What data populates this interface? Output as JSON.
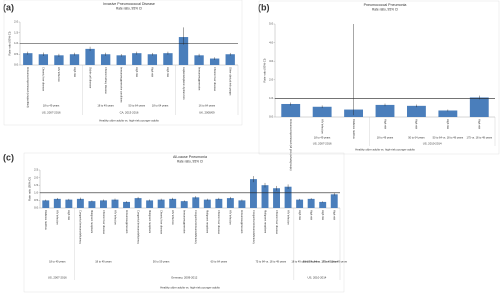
{
  "chart_data": [
    {
      "type": "bar",
      "panel": "(a)",
      "title": "Invasive Pneumococcal Disease",
      "subtitle": "Rate ratio, 95% CI",
      "y_label": "Rate ratio (95% CI)",
      "x_label": "Healthy older adults vs. high-risk younger adults",
      "color": "#4a7ebb",
      "ref_line": 1,
      "ylim": [
        0,
        2
      ],
      "yticks": [
        {
          "value": 0,
          "label": "0.0"
        },
        {
          "value": 0.5,
          "label": "0.5"
        },
        {
          "value": 1,
          "label": "1.0"
        },
        {
          "value": 1.5,
          "label": "1.5"
        },
        {
          "value": 2,
          "label": "2.0"
        }
      ],
      "groups": [
        {
          "label": "US, 2007-2016",
          "subgroups": [
            {
              "label": "18 to 49 years",
              "categories": [
                "Immunocompromised (unspecified)",
                "Chronic liver disease",
                "HIV infection",
                "High risk"
              ],
              "values": [
                0.55,
                0.5,
                0.45,
                0.5
              ],
              "ci_low": [
                0.48,
                0.42,
                0.38,
                0.44
              ],
              "ci_high": [
                0.62,
                0.58,
                0.52,
                0.57
              ]
            }
          ]
        },
        {
          "label": "CA, 2013-2016",
          "subgroups": [
            {
              "label": "18 to 49 years",
              "categories": [
                "Sickle cell disease",
                "Chronic kidney disease",
                "Immunosuppressive conditions"
              ],
              "values": [
                0.75,
                0.5,
                0.45
              ],
              "ci_low": [
                0.65,
                0.43,
                0.39
              ],
              "ci_high": [
                0.85,
                0.57,
                0.51
              ]
            },
            {
              "label": "50 to 64 years",
              "categories": [
                "High risk"
              ],
              "values": [
                0.55
              ],
              "ci_low": [
                0.48
              ],
              "ci_high": [
                0.62
              ]
            },
            {
              "label": "18 to 64 years",
              "categories": [
                "High risk",
                "High risk"
              ],
              "values": [
                0.5,
                0.55
              ],
              "ci_low": [
                0.44,
                0.48
              ],
              "ci_high": [
                0.56,
                0.62
              ]
            }
          ]
        },
        {
          "label": "UK, 2008/09",
          "subgroups": [
            {
              "label": "16 to 64 years",
              "categories": [
                "Asplenia/splenic dysfunction",
                "Immunosuppression",
                "Chronic liver disease",
                "Other clinical risk groups"
              ],
              "values": [
                1.3,
                0.45,
                0.3,
                0.5
              ],
              "ci_low": [
                0.95,
                0.38,
                0.24,
                0.44
              ],
              "ci_high": [
                1.75,
                0.52,
                0.36,
                0.56
              ]
            }
          ]
        }
      ]
    },
    {
      "type": "bar",
      "panel": "(b)",
      "title": "Pneumococcal Pneumonia",
      "subtitle": "Rate ratio, 95% CI",
      "y_label": "Rate ratio (95% CI)",
      "x_label": "Healthy older adults vs. high-risk younger adults",
      "color": "#4a7ebb",
      "ref_line": 1,
      "ylim": [
        0,
        5
      ],
      "yticks": [
        {
          "value": 0,
          "label": "0.0"
        },
        {
          "value": 1,
          "label": "1.0"
        },
        {
          "value": 2,
          "label": "2.0"
        },
        {
          "value": 3,
          "label": "3.0"
        },
        {
          "value": 4,
          "label": "4.0"
        },
        {
          "value": 5,
          "label": "5.0"
        }
      ],
      "groups": [
        {
          "label": "US, 2007-2016",
          "subgroups": [
            {
              "label": "18 to 49 years",
              "categories": [
                "Immunocompromised (all groups/subgroups)",
                "HIV infection",
                "Diabetes mellitus"
              ],
              "values": [
                0.7,
                0.55,
                0.4
              ],
              "ci_low": [
                0.62,
                0.48,
                0.1
              ],
              "ci_high": [
                0.78,
                0.62,
                5
              ]
            }
          ]
        },
        {
          "label": "US, 2010-2014",
          "subgroups": [
            {
              "label": "18 to 49 years",
              "categories": [
                "High risk"
              ],
              "values": [
                0.65
              ],
              "ci_low": [
                0.58
              ],
              "ci_high": [
                0.72
              ]
            },
            {
              "label": "50 to 64 years",
              "categories": [
                "High risk"
              ],
              "values": [
                0.6
              ],
              "ci_low": [
                0.53
              ],
              "ci_high": [
                0.67
              ]
            },
            {
              "label": "50 to 64 vs. 18 to 49 years",
              "categories": [
                "High risk"
              ],
              "values": [
                0.35
              ],
              "ci_low": [
                0.3
              ],
              "ci_high": [
                0.4
              ]
            },
            {
              "label": "175 vs. 18 to 49 years",
              "categories": [
                "High risk"
              ],
              "values": [
                1.05
              ],
              "ci_low": [
                0.95
              ],
              "ci_high": [
                1.15
              ]
            }
          ]
        }
      ]
    },
    {
      "type": "bar",
      "panel": "(c)",
      "title": "All-cause Pneumonia",
      "subtitle": "Rate ratio, 95% CI",
      "y_label": "Rate ratio (95% CI)",
      "x_label": "Healthy older adults vs. high-risk younger adults",
      "color": "#4a7ebb",
      "ref_line": 1,
      "ylim": [
        0,
        2.5
      ],
      "yticks": [
        {
          "value": 0,
          "label": "0.0"
        },
        {
          "value": 0.5,
          "label": "0.5"
        },
        {
          "value": 1,
          "label": "1.0"
        },
        {
          "value": 1.5,
          "label": "1.5"
        },
        {
          "value": 2,
          "label": "2.0"
        },
        {
          "value": 2.5,
          "label": "2.5"
        }
      ],
      "groups": [
        {
          "label": "US, 2007-2016",
          "subgroups": [
            {
              "label": "18 to 49 years",
              "categories": [
                "Diabetes mellitus",
                "HIV infection",
                "High risk"
              ],
              "values": [
                0.5,
                0.6,
                0.55
              ],
              "ci_low": [
                0.45,
                0.54,
                0.5
              ],
              "ci_high": [
                0.55,
                0.66,
                0.6
              ]
            }
          ]
        },
        {
          "label": "Germany, 2009-2012",
          "subgroups": [
            {
              "label": "18 to 49 years",
              "categories": [
                "Congenital immunodeficiency",
                "Malignant neoplasm",
                "Chronic liver disease",
                "HIV infection",
                "Immunosuppression"
              ],
              "values": [
                0.6,
                0.45,
                0.5,
                0.55,
                0.4
              ],
              "ci_low": [
                0.52,
                0.4,
                0.44,
                0.48,
                0.35
              ],
              "ci_high": [
                0.68,
                0.5,
                0.56,
                0.62,
                0.45
              ]
            },
            {
              "label": "50 to 59 years",
              "categories": [
                "Congenital immunodeficiency",
                "Malignant neoplasm",
                "Chronic liver disease",
                "HIV infection",
                "Immunosuppression"
              ],
              "values": [
                0.65,
                0.5,
                0.55,
                0.6,
                0.45
              ],
              "ci_low": [
                0.57,
                0.44,
                0.49,
                0.53,
                0.4
              ],
              "ci_high": [
                0.73,
                0.56,
                0.61,
                0.67,
                0.5
              ]
            },
            {
              "label": "60 to 64 years",
              "categories": [
                "Congenital immunodeficiency",
                "Malignant neoplasm",
                "Chronic liver disease",
                "HIV infection",
                "Immunosuppression"
              ],
              "values": [
                0.7,
                0.55,
                0.6,
                0.65,
                0.5
              ],
              "ci_low": [
                0.62,
                0.49,
                0.53,
                0.57,
                0.44
              ],
              "ci_high": [
                0.78,
                0.61,
                0.67,
                0.73,
                0.56
              ]
            },
            {
              "label": "75 to 84 vs. 18 to 49 years",
              "categories": [
                "Congenital immunodeficiency",
                "Malignant neoplasm",
                "Chronic liver disease",
                "HIV infection"
              ],
              "values": [
                1.9,
                1.5,
                1.3,
                1.4
              ],
              "ci_low": [
                1.7,
                1.35,
                1.15,
                1.25
              ],
              "ci_high": [
                2.1,
                1.65,
                1.45,
                1.55
              ]
            }
          ]
        },
        {
          "label": "US, 2010-2014",
          "subgroups": [
            {
              "label": "18 to 49 years",
              "categories": [
                "High risk"
              ],
              "values": [
                0.55
              ],
              "ci_low": [
                0.5
              ],
              "ci_high": [
                0.6
              ]
            },
            {
              "label": "50 to 64 years",
              "categories": [
                "High risk"
              ],
              "values": [
                0.6
              ],
              "ci_low": [
                0.55
              ],
              "ci_high": [
                0.65
              ]
            },
            {
              "label": "50 to 64 vs. 18 to 49 years",
              "categories": [
                "High risk"
              ],
              "values": [
                0.4
              ],
              "ci_low": [
                0.36
              ],
              "ci_high": [
                0.44
              ]
            },
            {
              "label": "175 vs. 18 to 49 years",
              "categories": [
                "High risk"
              ],
              "values": [
                0.9
              ],
              "ci_low": [
                0.82
              ],
              "ci_high": [
                0.98
              ]
            }
          ]
        }
      ]
    }
  ]
}
